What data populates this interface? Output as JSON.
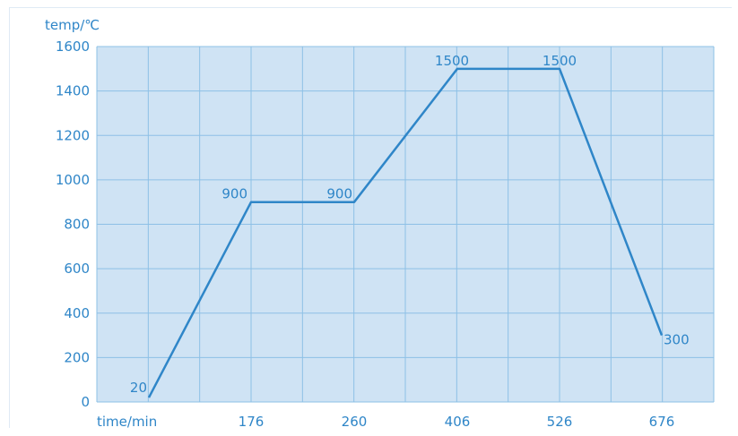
{
  "chart_data": {
    "type": "line",
    "ylabel": "temp/℃",
    "xlabel": "time/min",
    "yticks": [
      "0",
      "200",
      "400",
      "600",
      "800",
      "1000",
      "1200",
      "1400",
      "1600"
    ],
    "xticks": [
      "176",
      "260",
      "406",
      "526",
      "676"
    ],
    "ylim": [
      0,
      1600
    ],
    "grid": true,
    "line_color": "#2f86c8",
    "plot_bg": "#cfe3f4",
    "grid_color": "#8dc0e6",
    "points": [
      {
        "x": 0,
        "y": 20,
        "label": "20"
      },
      {
        "x": 176,
        "y": 900,
        "label": "900"
      },
      {
        "x": 260,
        "y": 900,
        "label": "900"
      },
      {
        "x": 406,
        "y": 1500,
        "label": "1500"
      },
      {
        "x": 526,
        "y": 1500,
        "label": "1500"
      },
      {
        "x": 676,
        "y": 300,
        "label": "300"
      }
    ]
  }
}
